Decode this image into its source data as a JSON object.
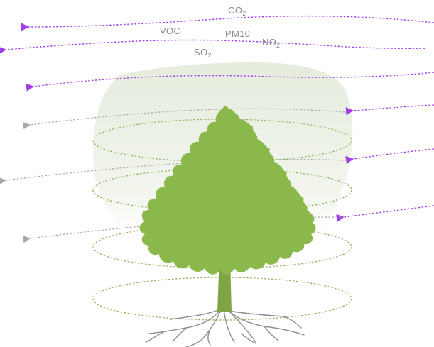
{
  "pollutants": [
    {
      "name": "CO",
      "sub": "2"
    },
    {
      "name": "VOC",
      "sub": ""
    },
    {
      "name": "PM10",
      "sub": ""
    },
    {
      "name": "NO",
      "sub": "2"
    },
    {
      "name": "SO",
      "sub": "2"
    }
  ],
  "colors": {
    "polluted_air": "#a23be8",
    "filtered_air": "#a8a8a8",
    "canopy": "#8bb84a",
    "trunk": "#7ea443",
    "roots": "#8e8e8e",
    "rings": "#93b25e",
    "haze": "#e9efe2"
  },
  "icons": {
    "tree": "tree-icon",
    "roots": "roots-icon",
    "arrow": "arrow-left-icon"
  }
}
